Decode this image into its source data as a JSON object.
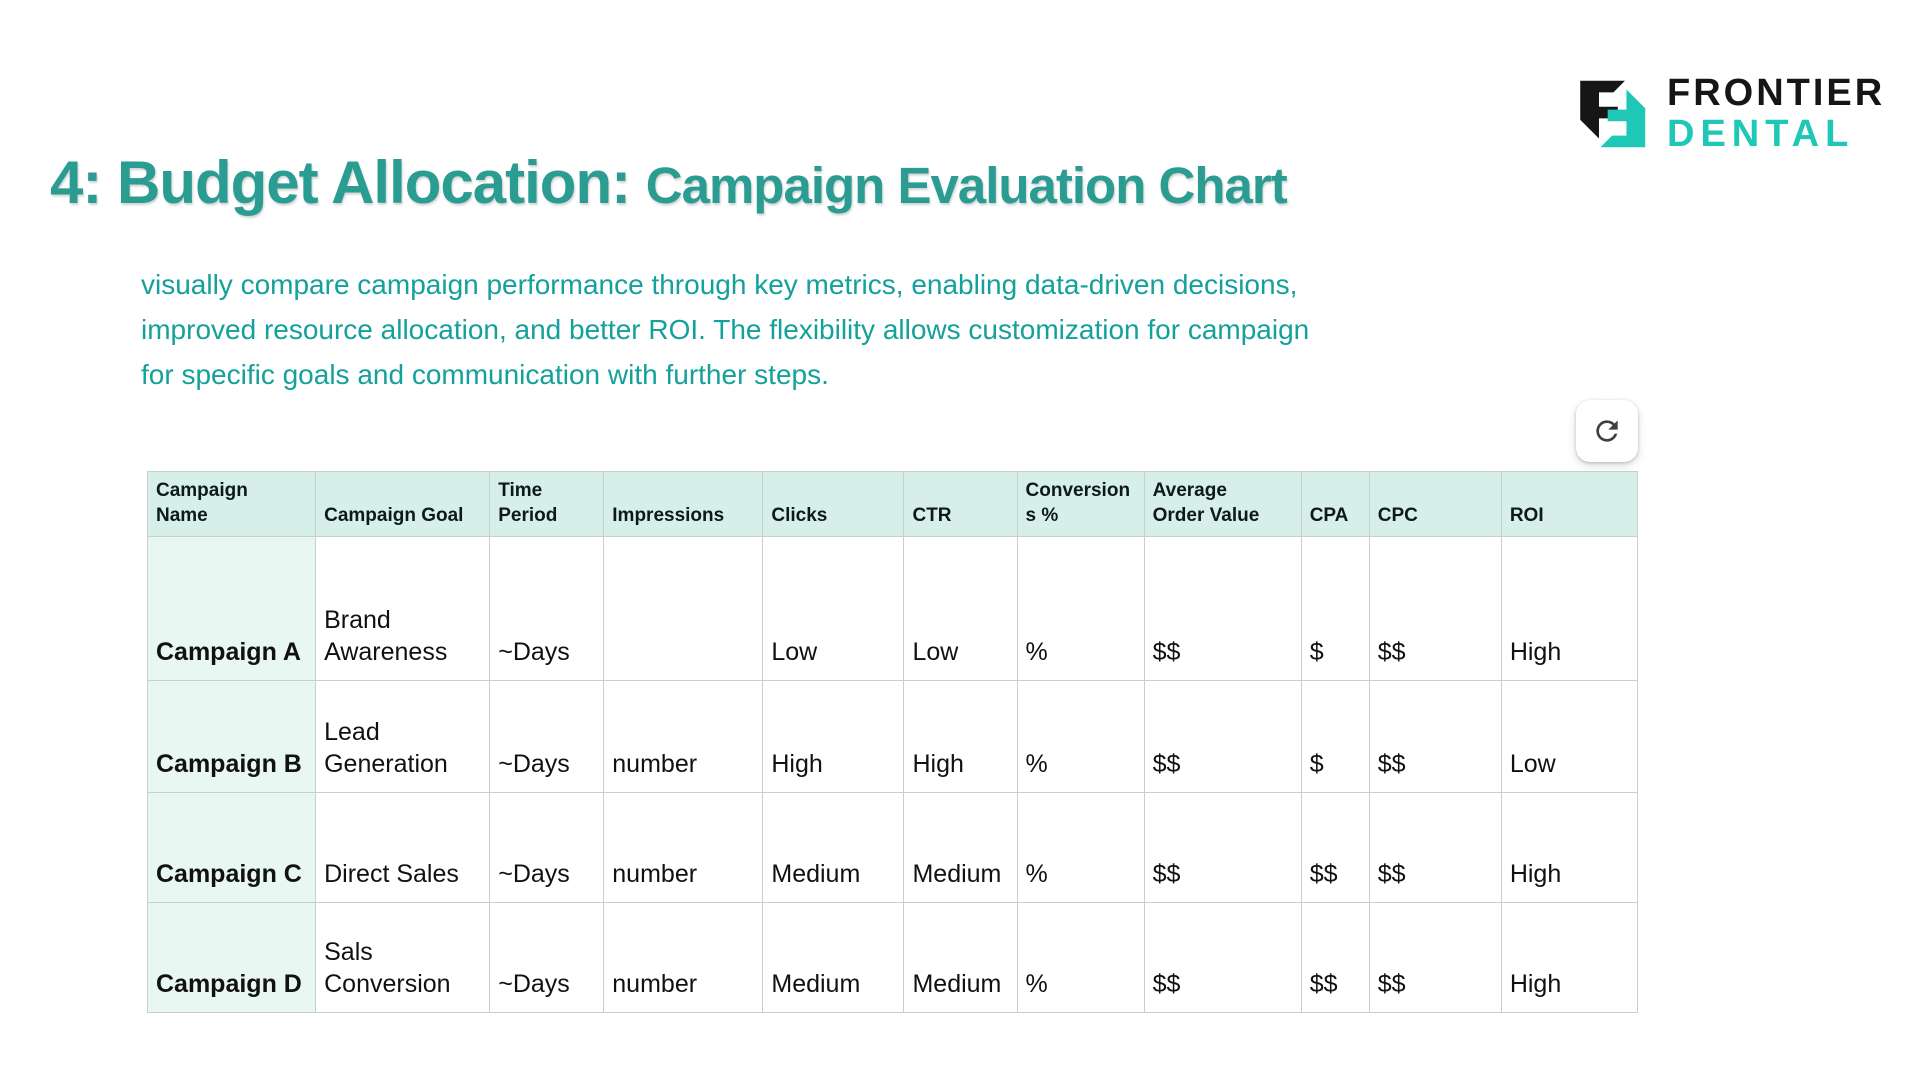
{
  "logo": {
    "brand_top": "FRONTIER",
    "brand_bottom": "DENTAL",
    "colors": {
      "brand_black": "#161616",
      "brand_teal": "#1fc7b7"
    }
  },
  "title": {
    "prefix": "4: Budget Allocation: ",
    "rest": "Campaign Evaluation Chart",
    "color": "#2a9c92"
  },
  "subtitle": {
    "color": "#14a09b",
    "line1": "visually compare campaign performance through key metrics, enabling data-driven decisions,",
    "line2": "improved resource allocation, and better ROI. The flexibility allows customization for campaign",
    "line3": "for specific goals and communication with further steps."
  },
  "toolbar": {
    "refresh_icon": "refresh-icon"
  },
  "table": {
    "header_bg": "#d6f0e9",
    "first_col_bg": "#e8f7f2",
    "columns": [
      "Campaign Name",
      "Campaign Goal",
      "Time Period",
      "Impressions",
      "Clicks",
      "CTR",
      "Conversions %",
      "Average Order Value",
      "CPA",
      "CPC",
      "ROI"
    ],
    "rows": [
      [
        "Campaign A",
        "Brand Awareness",
        "~Days",
        "",
        "Low",
        "Low",
        "%",
        "$$",
        "$",
        "$$",
        "High"
      ],
      [
        "Campaign B",
        "Lead Generation",
        "~Days",
        "number",
        "High",
        "High",
        "%",
        "$$",
        "$",
        "$$",
        "Low"
      ],
      [
        "Campaign C",
        "Direct Sales",
        "~Days",
        "number",
        "Medium",
        "Medium",
        "%",
        "$$",
        "$$",
        "$$",
        "High"
      ],
      [
        "Campaign D",
        "Sals Conversion",
        "~Days",
        "number",
        "Medium",
        "Medium",
        "%",
        "$$",
        "$$",
        "$$",
        "High"
      ]
    ]
  }
}
